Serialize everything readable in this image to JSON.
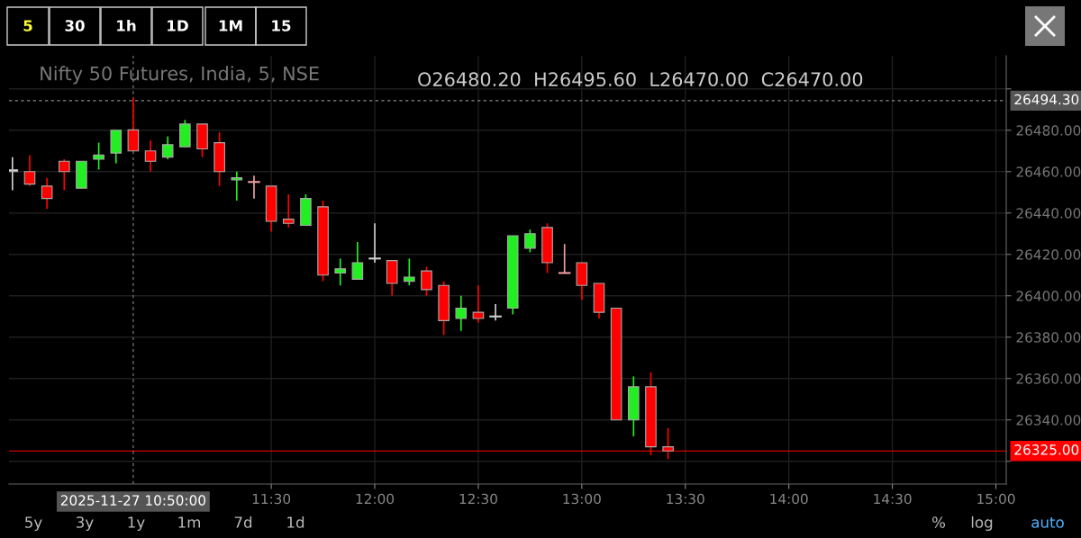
{
  "chart_data": {
    "type": "candlestick",
    "title": "Nifty 50 Futures, India, 5, NSE",
    "x": [
      "2025-11-27T10:15",
      "2025-11-27T10:20",
      "2025-11-27T10:25",
      "2025-11-27T10:30",
      "2025-11-27T10:35",
      "2025-11-27T10:40",
      "2025-11-27T10:45",
      "2025-11-27T10:50",
      "2025-11-27T10:55",
      "2025-11-27T11:00",
      "2025-11-27T11:05",
      "2025-11-27T11:10",
      "2025-11-27T11:15",
      "2025-11-27T11:20",
      "2025-11-27T11:25",
      "2025-11-27T11:30",
      "2025-11-27T11:35",
      "2025-11-27T11:40",
      "2025-11-27T11:45",
      "2025-11-27T11:50",
      "2025-11-27T11:55",
      "2025-11-27T12:00",
      "2025-11-27T12:05",
      "2025-11-27T12:10",
      "2025-11-27T12:15",
      "2025-11-27T12:20",
      "2025-11-27T12:25",
      "2025-11-27T12:30",
      "2025-11-27T12:35",
      "2025-11-27T12:40",
      "2025-11-27T12:45",
      "2025-11-27T12:50",
      "2025-11-27T12:55",
      "2025-11-27T13:00",
      "2025-11-27T13:05",
      "2025-11-27T13:10",
      "2025-11-27T13:15",
      "2025-11-27T13:20",
      "2025-11-27T13:25"
    ],
    "ohlc": [
      [
        26461,
        26467,
        26451,
        26460
      ],
      [
        26460,
        26468,
        26453,
        26454
      ],
      [
        26453,
        26457,
        26442,
        26447
      ],
      [
        26465,
        26466,
        26451,
        26460
      ],
      [
        26452,
        26465,
        26452,
        26465
      ],
      [
        26466,
        26474,
        26461,
        26468
      ],
      [
        26469,
        26480,
        26464,
        26480
      ],
      [
        26480.2,
        26495.6,
        26470,
        26470
      ],
      [
        26470,
        26475,
        26460,
        26465
      ],
      [
        26467,
        26477,
        26466,
        26473
      ],
      [
        26472,
        26485,
        26472,
        26483
      ],
      [
        26483,
        26483,
        26467,
        26471
      ],
      [
        26474,
        26479,
        26453,
        26460
      ],
      [
        26456,
        26460,
        26446,
        26457
      ],
      [
        26455,
        26458,
        26447,
        26455
      ],
      [
        26453,
        26453,
        26431,
        26436
      ],
      [
        26437,
        26449,
        26433,
        26435
      ],
      [
        26434,
        26449,
        26434,
        26447
      ],
      [
        26443,
        26446,
        26407,
        26410
      ],
      [
        26411,
        26418,
        26405,
        26413
      ],
      [
        26408,
        26426,
        26408,
        26416
      ],
      [
        26418,
        26435,
        26416,
        26418
      ],
      [
        26417,
        26417,
        26400,
        26406
      ],
      [
        26407,
        26418,
        26405,
        26409
      ],
      [
        26412,
        26414,
        26400,
        26403
      ],
      [
        26405,
        26407,
        26381,
        26388
      ],
      [
        26389,
        26400,
        26383,
        26394
      ],
      [
        26392,
        26405,
        26387,
        26389
      ],
      [
        26390,
        26396,
        26388,
        26390
      ],
      [
        26394,
        26429,
        26391,
        26429
      ],
      [
        26423,
        26432,
        26421,
        26430
      ],
      [
        26433,
        26435,
        26411,
        26416
      ],
      [
        26411,
        26425,
        26411,
        26411
      ],
      [
        26416,
        26416,
        26398,
        26405
      ],
      [
        26406,
        26406,
        26389,
        26392
      ],
      [
        26394,
        26394,
        26340,
        26340
      ],
      [
        26340,
        26361,
        26332,
        26356
      ],
      [
        26356,
        26363,
        26323,
        26327
      ],
      [
        26327,
        26336,
        26321,
        26325
      ]
    ],
    "colors": [
      "#d0d0d0",
      "#ff0000",
      "#ff0000",
      "#ff0000",
      "#22ee22",
      "#22ee22",
      "#22ee22",
      "#ff0000",
      "#ff0000",
      "#22ee22",
      "#22ee22",
      "#ff0000",
      "#ff0000",
      "#22ee22",
      "#f0a0a0",
      "#ff0000",
      "#ff0000",
      "#22ee22",
      "#ff0000",
      "#22ee22",
      "#22ee22",
      "#d0d0d0",
      "#ff0000",
      "#22ee22",
      "#ff0000",
      "#ff0000",
      "#22ee22",
      "#ff0000",
      "#d0d0d0",
      "#22ee22",
      "#22ee22",
      "#ff0000",
      "#f0a0a0",
      "#ff0000",
      "#ff0000",
      "#ff0000",
      "#22ee22",
      "#ff0000",
      "#ff0000"
    ],
    "xlim": [
      "2025-11-27T10:14",
      "2025-11-27T15:03"
    ],
    "xticks": [
      {
        "value": "2025-11-27T11:30",
        "label": "11:30"
      },
      {
        "value": "2025-11-27T12:00",
        "label": "12:00"
      },
      {
        "value": "2025-11-27T12:30",
        "label": "12:30"
      },
      {
        "value": "2025-11-27T13:00",
        "label": "13:00"
      },
      {
        "value": "2025-11-27T13:30",
        "label": "13:30"
      },
      {
        "value": "2025-11-27T14:00",
        "label": "14:00"
      },
      {
        "value": "2025-11-27T14:30",
        "label": "14:30"
      },
      {
        "value": "2025-11-27T15:00",
        "label": "15:00"
      }
    ],
    "ylim": [
      26309,
      26516
    ],
    "yticks": [
      {
        "value": 26320,
        "label": null
      },
      {
        "value": 26340,
        "label": "26340.00"
      },
      {
        "value": 26360,
        "label": "26360.00"
      },
      {
        "value": 26380,
        "label": "26380.00"
      },
      {
        "value": 26400,
        "label": "26400.00"
      },
      {
        "value": 26420,
        "label": "26420.00"
      },
      {
        "value": 26440,
        "label": "26440.00"
      },
      {
        "value": 26460,
        "label": "26460.00"
      },
      {
        "value": 26480,
        "label": "26480.00"
      },
      {
        "value": 26500,
        "label": null
      }
    ],
    "grid": true,
    "ref_lines": [
      {
        "axis": "y",
        "value": 26325,
        "label": "26325.00",
        "color": "#ff0000",
        "line_style": "solid"
      },
      {
        "axis": "y",
        "value": 26494.3,
        "label": "26494.30",
        "color": "#888888",
        "line_style": "dashed"
      },
      {
        "axis": "x",
        "value": "2025-11-27T10:50",
        "label": "2025-11-27 10:50:00",
        "color": "#888888",
        "line_style": "dashed"
      }
    ],
    "annotations": [
      "O26480.20  H26495.60  L26470.00  C26470.00",
      "5",
      "30",
      "1h",
      "1D",
      "1M",
      "15",
      "5y",
      "3y",
      "1y",
      "1m",
      "7d",
      "1d",
      "%",
      "log",
      "auto"
    ]
  }
}
